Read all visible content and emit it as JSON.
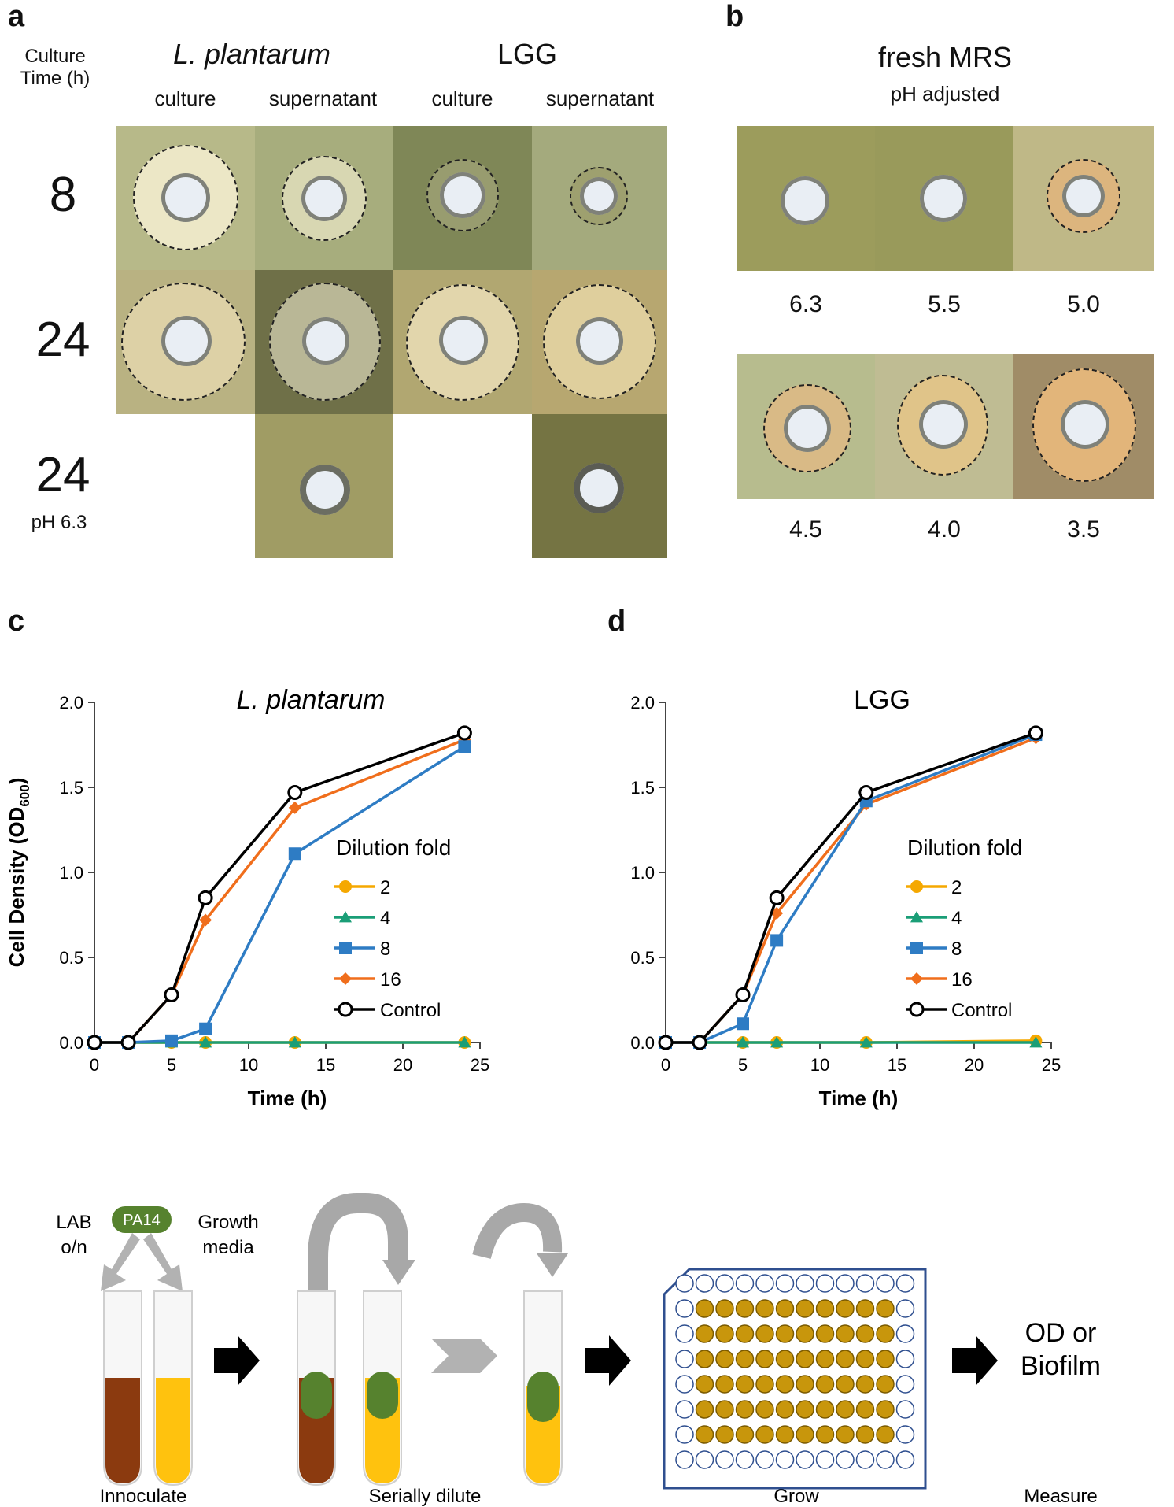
{
  "panels": {
    "a": "a",
    "b": "b",
    "c": "c",
    "d": "d"
  },
  "panel_a": {
    "culture_time_label_1": "Culture",
    "culture_time_label_2": "Time (h)",
    "organism_1": "L. plantarum",
    "organism_2": "LGG",
    "col_headers": [
      "culture",
      "supernatant",
      "culture",
      "supernatant"
    ],
    "row_labels": [
      "8",
      "24",
      "24"
    ],
    "row3_sublabel": "pH 6.3"
  },
  "panel_b": {
    "title": "fresh MRS",
    "subtitle": "pH adjusted",
    "ph_values_top": [
      "6.3",
      "5.5",
      "5.0"
    ],
    "ph_values_bottom": [
      "4.5",
      "4.0",
      "3.5"
    ]
  },
  "chart_data": [
    {
      "type": "line",
      "panel": "c",
      "title": "L. plantarum",
      "xlabel": "Time (h)",
      "ylabel": "Cell Density (OD600)",
      "xlim": [
        0,
        25
      ],
      "ylim": [
        0,
        2.0
      ],
      "x_ticks": [
        "0",
        "5",
        "10",
        "15",
        "20",
        "25"
      ],
      "y_ticks": [
        "0.0",
        "0.5",
        "1.0",
        "1.5",
        "2.0"
      ],
      "legend_title": "Dilution fold",
      "legend_position": "center-right",
      "series": [
        {
          "name": "2",
          "color": "#f5a800",
          "marker": "circle",
          "x": [
            0,
            2.2,
            5,
            7.2,
            13,
            24
          ],
          "y": [
            0,
            0,
            0,
            0,
            0,
            0
          ]
        },
        {
          "name": "4",
          "color": "#1a9e77",
          "marker": "triangle",
          "x": [
            0,
            2.2,
            5,
            7.2,
            13,
            24
          ],
          "y": [
            0,
            0,
            0,
            0,
            0,
            0
          ]
        },
        {
          "name": "8",
          "color": "#2e7cc4",
          "marker": "square",
          "x": [
            0,
            2.2,
            5,
            7.2,
            13,
            24
          ],
          "y": [
            0,
            0,
            0.01,
            0.08,
            1.11,
            1.74
          ]
        },
        {
          "name": "16",
          "color": "#f06e1c",
          "marker": "diamond",
          "x": [
            0,
            2.2,
            5,
            7.2,
            13,
            24
          ],
          "y": [
            0,
            0,
            0.28,
            0.72,
            1.38,
            1.78
          ]
        },
        {
          "name": "Control",
          "color": "#000000",
          "marker": "open-circle",
          "x": [
            0,
            2.2,
            5,
            7.2,
            13,
            24
          ],
          "y": [
            0,
            0,
            0.28,
            0.85,
            1.47,
            1.82
          ]
        }
      ]
    },
    {
      "type": "line",
      "panel": "d",
      "title": "LGG",
      "xlabel": "Time (h)",
      "ylabel": "",
      "xlim": [
        0,
        25
      ],
      "ylim": [
        0,
        2.0
      ],
      "x_ticks": [
        "0",
        "5",
        "10",
        "15",
        "20",
        "25"
      ],
      "y_ticks": [
        "0.0",
        "0.5",
        "1.0",
        "1.5",
        "2.0"
      ],
      "legend_title": "Dilution fold",
      "legend_position": "center-right",
      "series": [
        {
          "name": "2",
          "color": "#f5a800",
          "marker": "circle",
          "x": [
            0,
            2.2,
            5,
            7.2,
            13,
            24
          ],
          "y": [
            0,
            0,
            0,
            0,
            0,
            0.01
          ]
        },
        {
          "name": "4",
          "color": "#1a9e77",
          "marker": "triangle",
          "x": [
            0,
            2.2,
            5,
            7.2,
            13,
            24
          ],
          "y": [
            0,
            0,
            0,
            0,
            0,
            0
          ]
        },
        {
          "name": "8",
          "color": "#2e7cc4",
          "marker": "square",
          "x": [
            0,
            2.2,
            5,
            7.2,
            13,
            24
          ],
          "y": [
            0,
            0,
            0.11,
            0.6,
            1.42,
            1.81
          ]
        },
        {
          "name": "16",
          "color": "#f06e1c",
          "marker": "diamond",
          "x": [
            0,
            2.2,
            5,
            7.2,
            13,
            24
          ],
          "y": [
            0,
            0,
            0.28,
            0.76,
            1.4,
            1.79
          ]
        },
        {
          "name": "Control",
          "color": "#000000",
          "marker": "open-circle",
          "x": [
            0,
            2.2,
            5,
            7.2,
            13,
            24
          ],
          "y": [
            0,
            0,
            0.28,
            0.85,
            1.47,
            1.82
          ]
        }
      ]
    }
  ],
  "diagram": {
    "pa14": "PA14",
    "lab_on_1": "LAB",
    "lab_on_2": "o/n",
    "growth_media_1": "Growth",
    "growth_media_2": "media",
    "result_1": "OD or",
    "result_2": "Biofilm",
    "steps": [
      "Innoculate",
      "Serially dilute",
      "Grow",
      "Measure"
    ],
    "colors": {
      "lab": "#8b3a0f",
      "media": "#ffc20e",
      "pa14": "#56822e",
      "well": "#c8960c",
      "plate_border": "#2f4f8f"
    }
  }
}
